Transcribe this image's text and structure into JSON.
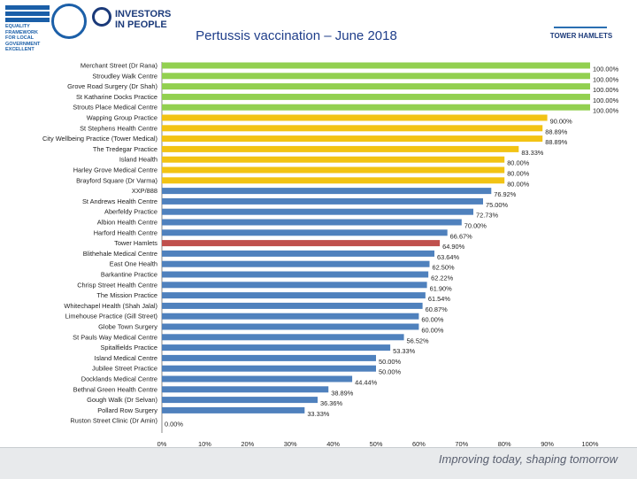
{
  "header": {
    "title": "Pertussis vaccination – June 2018",
    "logo_left_text": "EQUALITY FRAMEWORK FOR LOCAL GOVERNMENT EXCELLENT",
    "logo_investors_text": "INVESTORS IN PEOPLE",
    "logo_right_text": "TOWER HAMLETS"
  },
  "footer": {
    "tagline": "Improving today, shaping tomorrow"
  },
  "colors": {
    "green": "#92d050",
    "yellow": "#f2c314",
    "blue": "#4f81bd",
    "red": "#c0504d"
  },
  "chart_data": {
    "type": "bar",
    "orientation": "horizontal",
    "title": "Pertussis vaccination – June 2018",
    "xlim": [
      0,
      100
    ],
    "ticks": [
      "0%",
      "10%",
      "20%",
      "30%",
      "40%",
      "50%",
      "60%",
      "70%",
      "80%",
      "90%",
      "100%"
    ],
    "categories": [
      "Merchant Street (Dr Rana)",
      "Stroudley Walk Centre",
      "Grove Road Surgery (Dr Shah)",
      "St Katharine Docks Practice",
      "Strouts Place Medical Centre",
      "Wapping Group Practice",
      "St Stephens Health Centre",
      "City Wellbeing Practice (Tower Medical)",
      "The Tredegar Practice",
      "Island Health",
      "Harley Grove Medical Centre",
      "Brayford Square (Dr Varma)",
      "XXP/888",
      "St Andrews Health Centre",
      "Aberfeldy Practice",
      "Albion Health Centre",
      "Harford Health Centre",
      "Tower Hamlets",
      "Blithehale Medical Centre",
      "East One Health",
      "Barkantine Practice",
      "Chrisp Street Health Centre",
      "The Mission Practice",
      "Whitechapel Health (Shah Jalal)",
      "Limehouse Practice (Gill Street)",
      "Globe Town Surgery",
      "St Pauls Way Medical Centre",
      "Spitalfields Practice",
      "Island Medical Centre",
      "Jubilee Street Practice",
      "Docklands Medical Centre",
      "Bethnal Green Health Centre",
      "Gough Walk (Dr Selvan)",
      "Pollard Row Surgery",
      "Ruston Street Clinic (Dr Amin)"
    ],
    "values": [
      100.0,
      100.0,
      100.0,
      100.0,
      100.0,
      90.0,
      88.89,
      88.89,
      83.33,
      80.0,
      80.0,
      80.0,
      76.92,
      75.0,
      72.73,
      70.0,
      66.67,
      64.9,
      63.64,
      62.5,
      62.22,
      61.9,
      61.54,
      60.87,
      60.0,
      60.0,
      56.52,
      53.33,
      50.0,
      50.0,
      44.44,
      38.89,
      36.36,
      33.33,
      0.0
    ],
    "labels": [
      "100.00%",
      "100.00%",
      "100.00%",
      "100.00%",
      "100.00%",
      "90.00%",
      "88.89%",
      "88.89%",
      "83.33%",
      "80.00%",
      "80.00%",
      "80.00%",
      "76.92%",
      "75.00%",
      "72.73%",
      "70.00%",
      "66.67%",
      "64.90%",
      "63.64%",
      "62.50%",
      "62.22%",
      "61.90%",
      "61.54%",
      "60.87%",
      "60.00%",
      "60.00%",
      "56.52%",
      "53.33%",
      "50.00%",
      "50.00%",
      "44.44%",
      "38.89%",
      "36.36%",
      "33.33%",
      "0.00%"
    ],
    "bar_colors": [
      "green",
      "green",
      "green",
      "green",
      "green",
      "yellow",
      "yellow",
      "yellow",
      "yellow",
      "yellow",
      "yellow",
      "yellow",
      "blue",
      "blue",
      "blue",
      "blue",
      "blue",
      "red",
      "blue",
      "blue",
      "blue",
      "blue",
      "blue",
      "blue",
      "blue",
      "blue",
      "blue",
      "blue",
      "blue",
      "blue",
      "blue",
      "blue",
      "blue",
      "blue",
      "blue"
    ]
  }
}
